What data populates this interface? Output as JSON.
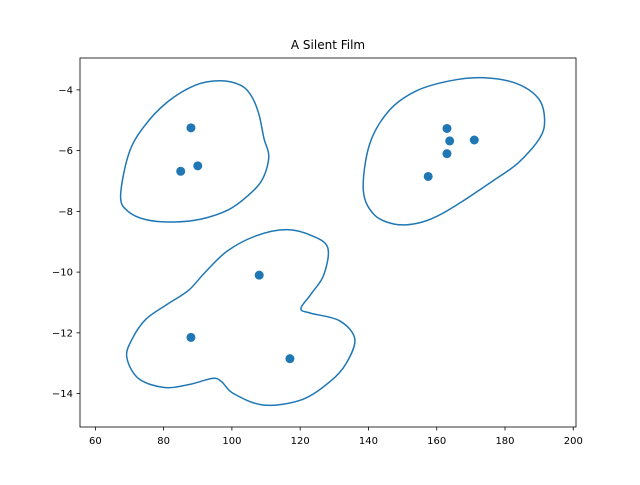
{
  "chart_data": {
    "type": "scatter",
    "title": "A Silent Film",
    "xlabel": "",
    "ylabel": "",
    "xlim": [
      55.5,
      200.8
    ],
    "ylim": [
      -15.1,
      -2.95
    ],
    "x_ticks": [
      60,
      80,
      100,
      120,
      140,
      160,
      180,
      200
    ],
    "y_ticks": [
      -14,
      -12,
      -10,
      -8,
      -6,
      -4
    ],
    "grid": false,
    "legend": "none",
    "colors": {
      "series": "#1f77b4",
      "axes": "#000000",
      "background": "#ffffff"
    },
    "series": [
      {
        "points": [
          {
            "x": 88.0,
            "y": -5.25
          },
          {
            "x": 85.0,
            "y": -6.68
          },
          {
            "x": 90.0,
            "y": -6.5
          },
          {
            "x": 163.0,
            "y": -5.27
          },
          {
            "x": 163.8,
            "y": -5.68
          },
          {
            "x": 171.0,
            "y": -5.65
          },
          {
            "x": 163.0,
            "y": -6.1
          },
          {
            "x": 157.5,
            "y": -6.85
          },
          {
            "x": 108.0,
            "y": -10.1
          },
          {
            "x": 88.0,
            "y": -12.15
          },
          {
            "x": 117.0,
            "y": -12.85
          }
        ]
      }
    ],
    "outlines": [
      {
        "closed": true,
        "points": [
          [
            67.4,
            -7.5
          ],
          [
            69.8,
            -6.1
          ],
          [
            74.3,
            -5.2
          ],
          [
            81.1,
            -4.4
          ],
          [
            89.2,
            -3.85
          ],
          [
            96.5,
            -3.7
          ],
          [
            102.6,
            -3.85
          ],
          [
            105.7,
            -4.2
          ],
          [
            107.9,
            -4.8
          ],
          [
            109.4,
            -5.6
          ],
          [
            110.8,
            -6.2
          ],
          [
            108.9,
            -6.95
          ],
          [
            104.5,
            -7.5
          ],
          [
            98.9,
            -7.95
          ],
          [
            91.1,
            -8.25
          ],
          [
            83.1,
            -8.35
          ],
          [
            75.1,
            -8.28
          ],
          [
            69.6,
            -8.0
          ],
          [
            67.4,
            -7.5
          ]
        ]
      },
      {
        "closed": true,
        "points": [
          [
            138.5,
            -7.3
          ],
          [
            140.3,
            -5.8
          ],
          [
            145.9,
            -4.7
          ],
          [
            153.7,
            -4.05
          ],
          [
            163.9,
            -3.7
          ],
          [
            174.0,
            -3.6
          ],
          [
            183.6,
            -3.8
          ],
          [
            189.9,
            -4.3
          ],
          [
            191.6,
            -5.0
          ],
          [
            190.1,
            -5.6
          ],
          [
            183.9,
            -6.4
          ],
          [
            176.4,
            -7.0
          ],
          [
            167.1,
            -7.7
          ],
          [
            160.3,
            -8.15
          ],
          [
            154.0,
            -8.4
          ],
          [
            147.6,
            -8.42
          ],
          [
            141.6,
            -8.1
          ],
          [
            138.5,
            -7.3
          ]
        ]
      },
      {
        "closed": true,
        "points": [
          [
            69.2,
            -12.8
          ],
          [
            70.8,
            -12.2
          ],
          [
            74.8,
            -11.55
          ],
          [
            81.2,
            -11.05
          ],
          [
            87.3,
            -10.6
          ],
          [
            92.2,
            -10.0
          ],
          [
            98.7,
            -9.3
          ],
          [
            107.2,
            -8.8
          ],
          [
            116.0,
            -8.6
          ],
          [
            123.4,
            -8.8
          ],
          [
            128.1,
            -9.2
          ],
          [
            126.9,
            -10.1
          ],
          [
            123.0,
            -10.75
          ],
          [
            120.2,
            -11.2
          ],
          [
            123.0,
            -11.35
          ],
          [
            131.5,
            -11.6
          ],
          [
            136.0,
            -12.2
          ],
          [
            133.5,
            -13.0
          ],
          [
            128.8,
            -13.6
          ],
          [
            120.5,
            -14.2
          ],
          [
            109.4,
            -14.38
          ],
          [
            100.5,
            -14.0
          ],
          [
            96.9,
            -13.6
          ],
          [
            94.3,
            -13.5
          ],
          [
            87.5,
            -13.7
          ],
          [
            80.2,
            -13.8
          ],
          [
            72.6,
            -13.5
          ],
          [
            69.2,
            -12.8
          ]
        ]
      }
    ]
  }
}
